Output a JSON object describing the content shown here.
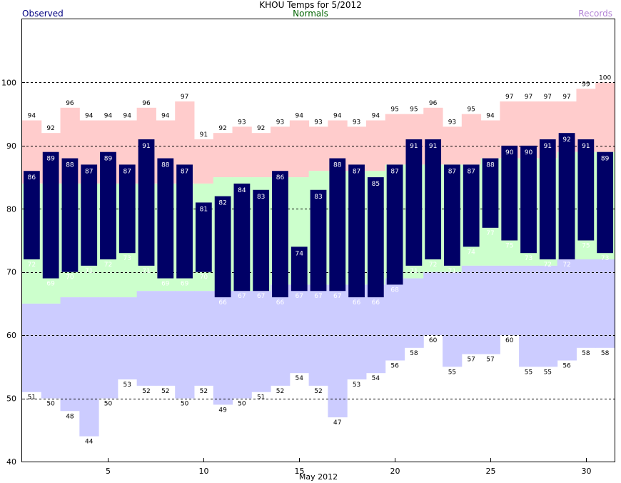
{
  "chart_data": {
    "type": "bar",
    "title": "KHOU Temps for 5/2012",
    "xlabel": "May 2012",
    "ylabel": "",
    "ylim": [
      40,
      110
    ],
    "xlim": [
      0.5,
      31.5
    ],
    "y_ticks": [
      40,
      50,
      60,
      70,
      80,
      90,
      100
    ],
    "x_ticks": [
      5,
      10,
      15,
      20,
      25,
      30
    ],
    "grid": true,
    "legend": [
      {
        "name": "Observed",
        "color": "#000080",
        "position": "top-left"
      },
      {
        "name": "Normals",
        "color": "#006400",
        "position": "top-center"
      },
      {
        "name": "Records",
        "color": "#b283d6",
        "position": "top-right"
      }
    ],
    "colors": {
      "observed": "#000066",
      "normals": "#ccffcc",
      "record_high": "#ffcccc",
      "record_low": "#ccccff",
      "grid": "#000000",
      "label_text_inside": "#ffffff",
      "label_text_outside": "#000000"
    },
    "days": [
      1,
      2,
      3,
      4,
      5,
      6,
      7,
      8,
      9,
      10,
      11,
      12,
      13,
      14,
      15,
      16,
      17,
      18,
      19,
      20,
      21,
      22,
      23,
      24,
      25,
      26,
      27,
      28,
      29,
      30,
      31
    ],
    "observed_high": [
      86,
      89,
      88,
      87,
      89,
      87,
      91,
      88,
      87,
      81,
      82,
      84,
      83,
      86,
      74,
      83,
      88,
      87,
      85,
      87,
      91,
      91,
      87,
      87,
      88,
      90,
      90,
      91,
      92,
      91,
      89
    ],
    "observed_low": [
      72,
      69,
      70,
      71,
      72,
      73,
      71,
      69,
      69,
      70,
      66,
      67,
      67,
      66,
      67,
      67,
      67,
      66,
      66,
      68,
      71,
      72,
      71,
      74,
      77,
      75,
      73,
      72,
      72,
      75,
      73
    ],
    "normal_high": [
      84,
      84,
      84,
      84,
      84,
      84,
      84,
      84,
      84,
      84,
      85,
      85,
      85,
      85,
      85,
      86,
      86,
      86,
      86,
      87,
      87,
      87,
      87,
      87,
      88,
      88,
      88,
      88,
      89,
      89,
      89
    ],
    "normal_low": [
      65,
      65,
      66,
      66,
      66,
      66,
      67,
      67,
      67,
      67,
      67,
      67,
      67,
      68,
      68,
      68,
      68,
      68,
      68,
      69,
      69,
      70,
      70,
      71,
      71,
      71,
      71,
      71,
      72,
      72,
      72
    ],
    "record_high": [
      94,
      92,
      96,
      94,
      94,
      94,
      96,
      94,
      97,
      91,
      92,
      93,
      92,
      93,
      94,
      93,
      94,
      93,
      94,
      95,
      95,
      96,
      93,
      95,
      94,
      97,
      97,
      97,
      97,
      99,
      100
    ],
    "record_low": [
      51,
      50,
      48,
      44,
      50,
      53,
      52,
      52,
      50,
      52,
      49,
      50,
      51,
      52,
      54,
      52,
      47,
      53,
      54,
      56,
      58,
      60,
      55,
      57,
      57,
      60,
      55,
      55,
      56,
      58,
      58
    ]
  }
}
